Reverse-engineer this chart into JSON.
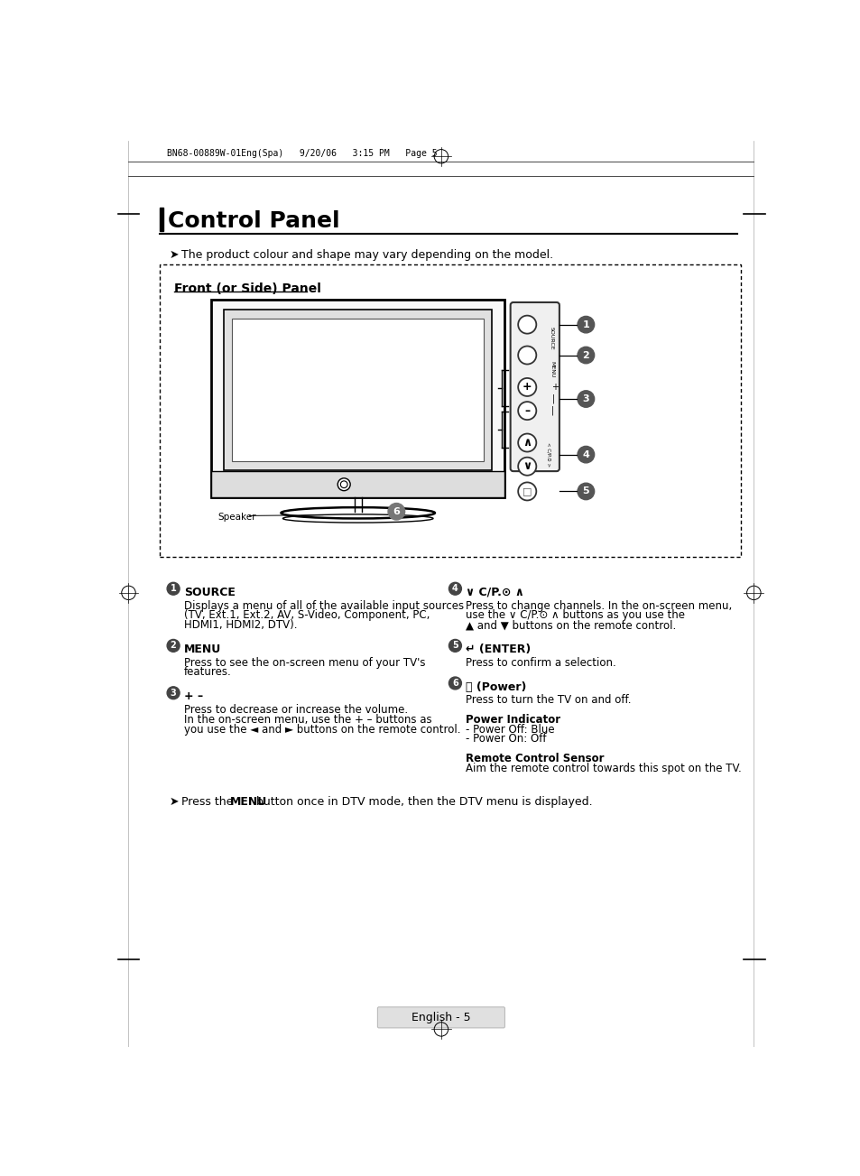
{
  "page_header": "BN68-00889W-01Eng(Spa)   9/20/06   3:15 PM   Page 5",
  "title": "Control Panel",
  "subtitle": "The product colour and shape may vary depending on the model.",
  "panel_title": "Front (or Side) Panel",
  "bg_color": "#ffffff",
  "text_color": "#000000",
  "section1_items": [
    {
      "num": "1",
      "heading": "SOURCE",
      "body": "Displays a menu of all of the available input sources\n(TV, Ext.1, Ext.2, AV, S-Video, Component, PC,\nHDMI1, HDMI2, DTV)."
    },
    {
      "num": "2",
      "heading": "MENU",
      "body": "Press to see the on-screen menu of your TV's\nfeatures."
    },
    {
      "num": "3",
      "heading": "+ –",
      "body": "Press to decrease or increase the volume.\nIn the on-screen menu, use the + – buttons as\nyou use the ◄ and ► buttons on the remote control."
    }
  ],
  "section2_items": [
    {
      "num": "4",
      "heading": "∨ C/P.⊙ ∧",
      "body": "Press to change channels. In the on-screen menu,\nuse the ∨ C/P.⊙ ∧ buttons as you use the\n▲ and ▼ buttons on the remote control."
    },
    {
      "num": "5",
      "heading": "↵ (ENTER)",
      "body": "Press to confirm a selection."
    },
    {
      "num": "6",
      "heading": "⏻ (Power)",
      "body": "Press to turn the TV on and off.\n\nPower Indicator\n- Power Off: Blue\n- Power On: Off\n\nRemote Control Sensor\nAim the remote control towards this spot on the TV."
    }
  ],
  "footer_note": "Press the MENU button once in DTV mode, then the DTV menu is displayed.",
  "page_number": "English - 5"
}
